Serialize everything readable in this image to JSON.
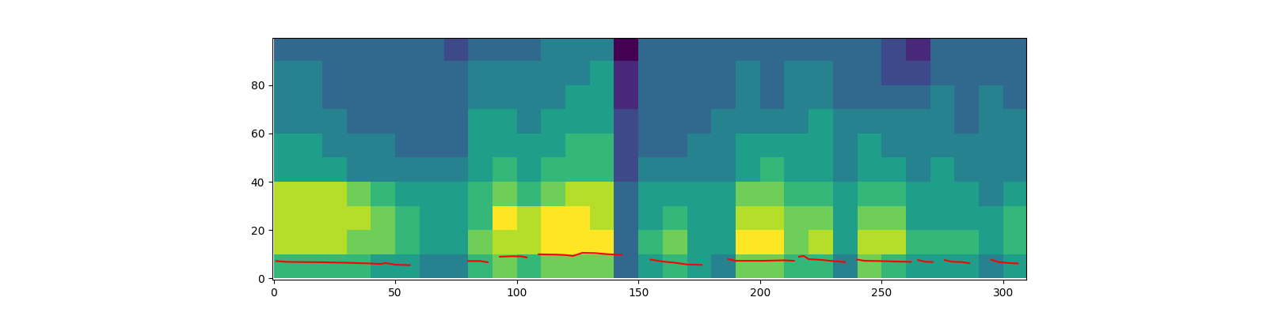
{
  "chart_data": {
    "type": "heatmap",
    "x_edges": [
      0,
      10,
      20,
      30,
      40,
      50,
      60,
      70,
      80,
      90,
      100,
      110,
      120,
      130,
      140,
      150,
      160,
      170,
      180,
      190,
      200,
      210,
      220,
      230,
      240,
      250,
      260,
      270,
      280,
      290,
      300,
      310
    ],
    "y_edges": [
      0,
      10,
      20,
      30,
      40,
      50,
      60,
      70,
      80,
      90,
      100
    ],
    "cells": [
      [
        6,
        8,
        8,
        8,
        5,
        5,
        4,
        4,
        4,
        3
      ],
      [
        6,
        8,
        8,
        8,
        5,
        5,
        4,
        4,
        4,
        3
      ],
      [
        6,
        8,
        8,
        8,
        5,
        4,
        4,
        3,
        3,
        3
      ],
      [
        6,
        7,
        8,
        7,
        4,
        4,
        3,
        3,
        3,
        3
      ],
      [
        5,
        7,
        7,
        6,
        4,
        4,
        3,
        3,
        3,
        3
      ],
      [
        5,
        6,
        6,
        5,
        4,
        3,
        3,
        3,
        3,
        3
      ],
      [
        4,
        5,
        5,
        5,
        4,
        3,
        3,
        3,
        3,
        3
      ],
      [
        4,
        5,
        5,
        5,
        4,
        3,
        3,
        3,
        3,
        2
      ],
      [
        6,
        7,
        6,
        6,
        5,
        5,
        5,
        4,
        4,
        3
      ],
      [
        7,
        8,
        9,
        7,
        6,
        5,
        5,
        4,
        4,
        3
      ],
      [
        6,
        8,
        8,
        6,
        5,
        5,
        4,
        4,
        4,
        3
      ],
      [
        7,
        9,
        9,
        7,
        6,
        5,
        5,
        4,
        4,
        4
      ],
      [
        7,
        9,
        9,
        8,
        6,
        6,
        5,
        5,
        4,
        4
      ],
      [
        7,
        9,
        8,
        8,
        6,
        6,
        5,
        5,
        5,
        4
      ],
      [
        3,
        3,
        3,
        3,
        2,
        2,
        2,
        1,
        1,
        0
      ],
      [
        5,
        6,
        5,
        5,
        4,
        3,
        3,
        3,
        3,
        3
      ],
      [
        6,
        7,
        6,
        5,
        4,
        3,
        3,
        3,
        3,
        3
      ],
      [
        5,
        5,
        5,
        5,
        4,
        4,
        3,
        3,
        3,
        3
      ],
      [
        4,
        5,
        5,
        5,
        4,
        4,
        4,
        3,
        3,
        3
      ],
      [
        7,
        9,
        8,
        7,
        5,
        5,
        4,
        4,
        4,
        3
      ],
      [
        7,
        9,
        8,
        7,
        6,
        5,
        4,
        3,
        3,
        3
      ],
      [
        6,
        7,
        7,
        6,
        5,
        5,
        4,
        4,
        4,
        3
      ],
      [
        6,
        8,
        7,
        6,
        5,
        5,
        5,
        4,
        4,
        3
      ],
      [
        4,
        5,
        5,
        5,
        4,
        4,
        4,
        3,
        3,
        3
      ],
      [
        7,
        8,
        7,
        6,
        5,
        5,
        4,
        3,
        3,
        3
      ],
      [
        6,
        8,
        7,
        6,
        5,
        4,
        4,
        3,
        2,
        2
      ],
      [
        5,
        6,
        5,
        5,
        4,
        4,
        4,
        3,
        2,
        1
      ],
      [
        5,
        6,
        5,
        5,
        5,
        4,
        4,
        4,
        3,
        3
      ],
      [
        5,
        6,
        5,
        5,
        4,
        4,
        3,
        3,
        3,
        3
      ],
      [
        4,
        5,
        5,
        4,
        4,
        4,
        4,
        4,
        3,
        3
      ],
      [
        5,
        6,
        6,
        5,
        4,
        4,
        4,
        3,
        3,
        3
      ]
    ],
    "series": [
      {
        "type": "line",
        "color": "red",
        "x": [
          1,
          5,
          10,
          20,
          30,
          40,
          44,
          46,
          50,
          56,
          60,
          80,
          85,
          88,
          90,
          93,
          98,
          102,
          104,
          106,
          109,
          115,
          120,
          123,
          127,
          132,
          138,
          143,
          148,
          155,
          160,
          165,
          170,
          176,
          180,
          187,
          190,
          200,
          210,
          214,
          215,
          216,
          218,
          220,
          225,
          230,
          235,
          238,
          240,
          243,
          250,
          256,
          262,
          263,
          265,
          268,
          271,
          273,
          276,
          279,
          283,
          286,
          290,
          295,
          298,
          302,
          306
        ],
        "values": [
          7.2,
          6.9,
          6.8,
          6.7,
          6.5,
          6.2,
          6.0,
          6.4,
          5.7,
          5.5,
          null,
          7.2,
          7.2,
          6.7,
          null,
          9.0,
          9.2,
          9.1,
          8.7,
          null,
          10.0,
          9.9,
          9.7,
          9.3,
          10.6,
          10.5,
          10.0,
          9.8,
          null,
          7.8,
          7.0,
          6.5,
          5.8,
          5.6,
          null,
          8.0,
          7.3,
          7.3,
          7.5,
          7.3,
          null,
          9.0,
          9.3,
          8.0,
          7.7,
          7.2,
          6.8,
          null,
          7.8,
          7.3,
          7.2,
          7.0,
          6.9,
          null,
          7.6,
          6.9,
          6.8,
          null,
          7.6,
          6.9,
          6.8,
          6.3,
          null,
          7.8,
          6.8,
          6.4,
          6.2
        ]
      }
    ],
    "xlim": [
      -0.5,
      309.5
    ],
    "ylim": [
      -0.5,
      99.5
    ],
    "xticks": [
      0,
      50,
      100,
      150,
      200,
      250,
      300
    ],
    "yticks": [
      0,
      20,
      40,
      60,
      80
    ]
  }
}
